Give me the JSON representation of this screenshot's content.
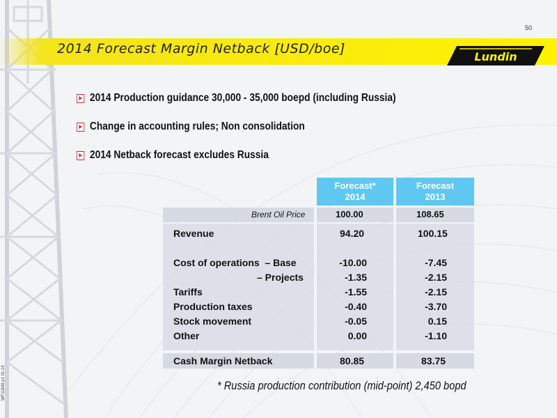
{
  "page_number": "50",
  "title": "2014 Forecast Margin Netback [USD/boe]",
  "logo_text": "Lundin",
  "bullets": [
    "2014 Production guidance 30,000 - 35,000 boepd (including Russia)",
    "Change in accounting rules; Non consolidation",
    "2014 Netback forecast excludes Russia"
  ],
  "table": {
    "col1_head": [
      "Forecast*",
      "2014"
    ],
    "col2_head": [
      "Forecast",
      "2013"
    ],
    "brent_label": "Brent Oil Price",
    "brent_values": [
      "100.00",
      "108.65"
    ],
    "rows": {
      "revenue": {
        "label": "Revenue",
        "v1": "94.20",
        "v2": "100.15"
      },
      "cost_base": {
        "label": "Cost of operations  – Base",
        "v1": "-10.00",
        "v2": "-7.45"
      },
      "cost_projects": {
        "label": "– Projects",
        "v1": "-1.35",
        "v2": "-2.15"
      },
      "tariffs": {
        "label": "Tariffs",
        "v1": "-1.55",
        "v2": "-2.15"
      },
      "production_taxes": {
        "label": "Production taxes",
        "v1": "-0.40",
        "v2": "-3.70"
      },
      "stock_movement": {
        "label": "Stock movement",
        "v1": "-0.05",
        "v2": "0.15"
      },
      "other": {
        "label": "Other",
        "v1": "0.00",
        "v2": "-1.10"
      }
    },
    "total": {
      "label": "Cash Margin Netback",
      "v1": "80.85",
      "v2": "83.75"
    }
  },
  "footnote": "* Russia production contribution (mid-point) 2,450 bopd",
  "doc_ref": "WF11849 p1 01.14",
  "colors": {
    "title_band": "#fff200",
    "header_cells": "#5ec8f2",
    "table_band": "#d6dae3",
    "bullet_mark": "#d81e2a"
  }
}
